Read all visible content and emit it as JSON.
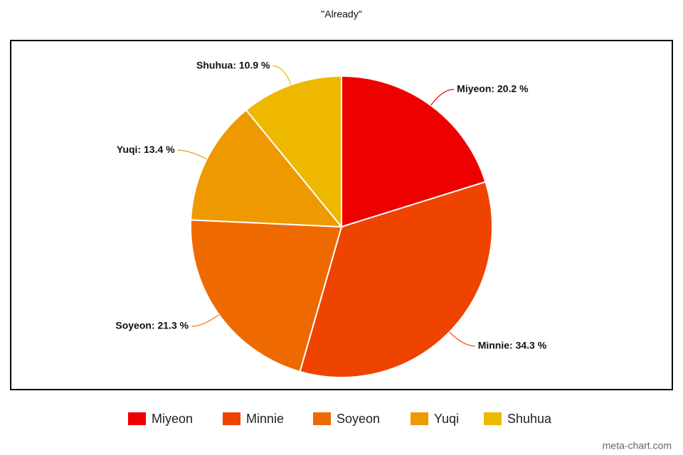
{
  "chart_data": {
    "type": "pie",
    "title": "\"Already\"",
    "categories": [
      "Miyeon",
      "Minnie",
      "Soyeon",
      "Yuqi",
      "Shuhua"
    ],
    "values": [
      20.2,
      34.3,
      21.3,
      13.4,
      10.9
    ],
    "value_labels": [
      "Miyeon: 20.2 %",
      "Minnie: 34.3 %",
      "Soyeon: 21.3 %",
      "Yuqi: 13.4 %",
      "Shuhua: 10.9 %"
    ],
    "colors": [
      "#ee0000",
      "#ee4400",
      "#ee6a00",
      "#ee9900",
      "#eeb800"
    ],
    "legend": "bottom",
    "watermark": "meta-chart.com"
  }
}
